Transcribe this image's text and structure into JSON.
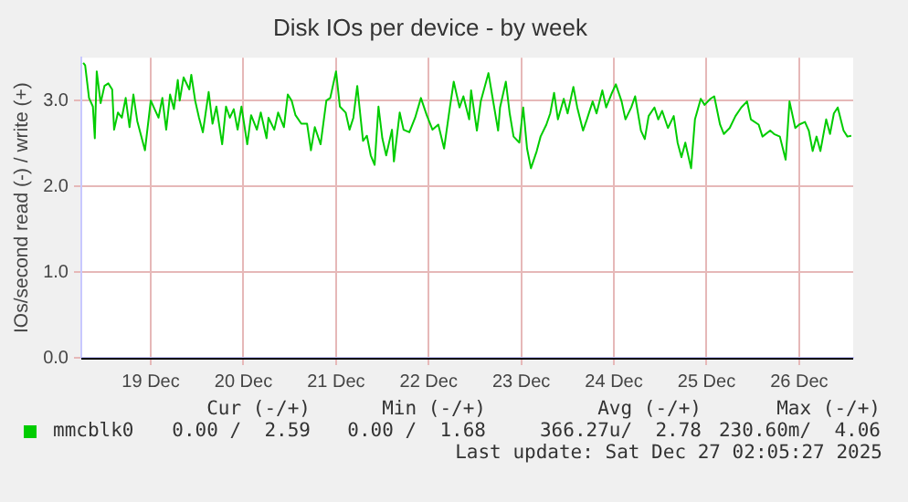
{
  "chart_data": {
    "type": "line",
    "title": "Disk IOs per device - by week",
    "ylabel": "IOs/second read (-) / write (+)",
    "xlim": [
      "2025-12-18T18:00",
      "2025-12-27T02:00"
    ],
    "xticks": [
      {
        "value": "2025-12-19T12:00",
        "label": "19 Dec"
      },
      {
        "value": "2025-12-20T12:00",
        "label": "20 Dec"
      },
      {
        "value": "2025-12-21T12:00",
        "label": "21 Dec"
      },
      {
        "value": "2025-12-22T12:00",
        "label": "22 Dec"
      },
      {
        "value": "2025-12-23T12:00",
        "label": "23 Dec"
      },
      {
        "value": "2025-12-24T12:00",
        "label": "24 Dec"
      },
      {
        "value": "2025-12-25T12:00",
        "label": "25 Dec"
      },
      {
        "value": "2025-12-26T12:00",
        "label": "26 Dec"
      }
    ],
    "ylim": [
      0,
      3.5
    ],
    "yticks": [
      {
        "value": 0,
        "label": "0.0"
      },
      {
        "value": 1,
        "label": "1.0"
      },
      {
        "value": 2,
        "label": "2.0"
      },
      {
        "value": 3,
        "label": "3.0"
      }
    ],
    "grid": true,
    "legend": "bottom left",
    "x": [
      "2025-12-18T18:30",
      "2025-12-18T19:00",
      "2025-12-18T20:00",
      "2025-12-18T21:00",
      "2025-12-18T21:30",
      "2025-12-18T22:00",
      "2025-12-18T23:00",
      "2025-12-19T00:00",
      "2025-12-19T01:00",
      "2025-12-19T02:00",
      "2025-12-19T02:30",
      "2025-12-19T03:30",
      "2025-12-19T04:30",
      "2025-12-19T05:30",
      "2025-12-19T06:30",
      "2025-12-19T07:30",
      "2025-12-19T08:30",
      "2025-12-19T09:30",
      "2025-12-19T10:30",
      "2025-12-19T12:00",
      "2025-12-19T13:00",
      "2025-12-19T14:00",
      "2025-12-19T15:00",
      "2025-12-19T16:00",
      "2025-12-19T17:00",
      "2025-12-19T18:00",
      "2025-12-19T19:00",
      "2025-12-19T19:30",
      "2025-12-19T20:30",
      "2025-12-19T22:00",
      "2025-12-19T22:30",
      "2025-12-19T23:30",
      "2025-12-20T00:30",
      "2025-12-20T01:30",
      "2025-12-20T03:00",
      "2025-12-20T04:00",
      "2025-12-20T05:00",
      "2025-12-20T06:30",
      "2025-12-20T07:30",
      "2025-12-20T08:30",
      "2025-12-20T09:30",
      "2025-12-20T10:30",
      "2025-12-20T11:30",
      "2025-12-20T13:00",
      "2025-12-20T14:00",
      "2025-12-20T15:30",
      "2025-12-20T16:30",
      "2025-12-20T18:00",
      "2025-12-20T18:30",
      "2025-12-20T20:00",
      "2025-12-20T21:00",
      "2025-12-20T22:30",
      "2025-12-20T23:30",
      "2025-12-21T00:30",
      "2025-12-21T01:30",
      "2025-12-21T03:00",
      "2025-12-21T04:30",
      "2025-12-21T05:30",
      "2025-12-21T06:30",
      "2025-12-21T08:00",
      "2025-12-21T09:30",
      "2025-12-21T10:30",
      "2025-12-21T12:00",
      "2025-12-21T13:00",
      "2025-12-21T14:30",
      "2025-12-21T15:30",
      "2025-12-21T16:30",
      "2025-12-21T17:30",
      "2025-12-21T19:00",
      "2025-12-21T20:00",
      "2025-12-21T21:00",
      "2025-12-21T22:00",
      "2025-12-21T23:00",
      "2025-12-22T00:00",
      "2025-12-22T01:00",
      "2025-12-22T02:30",
      "2025-12-22T03:00",
      "2025-12-22T04:30",
      "2025-12-22T05:30",
      "2025-12-22T07:00",
      "2025-12-22T08:30",
      "2025-12-22T10:00",
      "2025-12-22T11:30",
      "2025-12-22T13:00",
      "2025-12-22T14:30",
      "2025-12-22T16:00",
      "2025-12-22T17:30",
      "2025-12-22T18:30",
      "2025-12-22T20:00",
      "2025-12-22T21:00",
      "2025-12-22T22:30",
      "2025-12-22T23:00",
      "2025-12-23T00:30",
      "2025-12-23T01:30",
      "2025-12-23T03:30",
      "2025-12-23T04:30",
      "2025-12-23T06:00",
      "2025-12-23T06:30",
      "2025-12-23T08:00",
      "2025-12-23T09:00",
      "2025-12-23T10:00",
      "2025-12-23T11:30",
      "2025-12-23T12:30",
      "2025-12-23T13:30",
      "2025-12-23T14:30",
      "2025-12-23T16:00",
      "2025-12-23T17:00",
      "2025-12-23T18:30",
      "2025-12-23T19:30",
      "2025-12-23T20:30",
      "2025-12-23T21:30",
      "2025-12-23T23:00",
      "2025-12-24T00:00",
      "2025-12-24T01:30",
      "2025-12-24T02:30",
      "2025-12-24T04:00",
      "2025-12-24T05:00",
      "2025-12-24T06:30",
      "2025-12-24T07:30",
      "2025-12-24T09:00",
      "2025-12-24T10:00",
      "2025-12-24T11:30",
      "2025-12-24T12:30",
      "2025-12-24T14:00",
      "2025-12-24T15:00",
      "2025-12-24T16:30",
      "2025-12-24T17:30",
      "2025-12-24T19:00",
      "2025-12-24T20:00",
      "2025-12-24T21:00",
      "2025-12-24T22:30",
      "2025-12-24T23:30",
      "2025-12-25T00:30",
      "2025-12-25T02:00",
      "2025-12-25T03:30",
      "2025-12-25T04:30",
      "2025-12-25T05:30",
      "2025-12-25T06:30",
      "2025-12-25T08:00",
      "2025-12-25T09:00",
      "2025-12-25T10:30",
      "2025-12-25T11:30",
      "2025-12-25T13:00",
      "2025-12-25T14:00",
      "2025-12-25T15:30",
      "2025-12-25T16:30",
      "2025-12-25T18:00",
      "2025-12-25T19:30",
      "2025-12-25T21:00",
      "2025-12-25T22:30",
      "2025-12-25T23:30",
      "2025-12-26T01:30",
      "2025-12-26T02:30",
      "2025-12-26T04:30",
      "2025-12-26T05:30",
      "2025-12-26T07:00",
      "2025-12-26T08:30",
      "2025-12-26T09:30",
      "2025-12-26T11:00",
      "2025-12-26T12:00",
      "2025-12-26T13:30",
      "2025-12-26T14:30",
      "2025-12-26T15:30",
      "2025-12-26T16:30",
      "2025-12-26T17:30",
      "2025-12-26T19:00",
      "2025-12-26T20:00",
      "2025-12-26T21:00",
      "2025-12-26T22:00",
      "2025-12-26T23:30",
      "2025-12-27T00:30",
      "2025-12-27T01:30"
    ],
    "series": [
      {
        "name": "mmcblk0",
        "color": "#00cc00",
        "values": [
          3.44,
          3.41,
          3.03,
          2.93,
          2.56,
          3.34,
          2.97,
          3.17,
          3.2,
          3.13,
          2.66,
          2.86,
          2.8,
          3.03,
          2.69,
          3.07,
          2.76,
          2.59,
          2.42,
          3.0,
          2.9,
          2.8,
          3.03,
          2.66,
          3.07,
          2.9,
          3.24,
          3.0,
          3.27,
          3.13,
          3.3,
          3.0,
          2.8,
          2.63,
          3.1,
          2.73,
          2.93,
          2.49,
          2.93,
          2.8,
          2.9,
          2.66,
          2.93,
          2.49,
          2.83,
          2.66,
          2.86,
          2.56,
          2.8,
          2.66,
          2.86,
          2.69,
          3.07,
          3.0,
          2.83,
          2.73,
          2.73,
          2.42,
          2.69,
          2.49,
          3.0,
          3.03,
          3.34,
          2.93,
          2.86,
          2.66,
          2.8,
          3.17,
          2.53,
          2.59,
          2.36,
          2.25,
          2.93,
          2.56,
          2.36,
          2.66,
          2.29,
          2.86,
          2.66,
          2.63,
          2.8,
          3.03,
          2.83,
          2.66,
          2.72,
          2.44,
          2.92,
          3.22,
          2.92,
          3.05,
          2.78,
          3.12,
          2.65,
          2.99,
          3.32,
          3.05,
          2.65,
          2.92,
          3.22,
          2.85,
          2.58,
          2.51,
          2.92,
          2.44,
          2.21,
          2.41,
          2.58,
          2.72,
          2.85,
          3.09,
          2.78,
          3.02,
          2.85,
          3.16,
          2.92,
          2.65,
          2.78,
          2.99,
          2.85,
          3.12,
          2.92,
          3.09,
          3.19,
          2.99,
          2.78,
          2.92,
          3.05,
          2.65,
          2.55,
          2.82,
          2.92,
          2.78,
          2.88,
          2.68,
          2.82,
          2.51,
          2.34,
          2.51,
          2.21,
          2.78,
          3.02,
          2.95,
          3.02,
          3.05,
          2.72,
          2.61,
          2.68,
          2.82,
          2.92,
          2.99,
          2.78,
          2.72,
          2.58,
          2.65,
          2.61,
          2.58,
          2.31,
          2.99,
          2.68,
          2.72,
          2.75,
          2.65,
          2.41,
          2.58,
          2.41,
          2.78,
          2.61,
          2.85,
          2.92,
          2.65,
          2.58,
          2.59
        ]
      }
    ],
    "annotations": [
      "Cur (-/+)",
      "Min (-/+)",
      "Avg (-/+)",
      "Max (-/+)",
      "0.00 /  2.59",
      "0.00 /  1.68",
      "366.27u/  2.78",
      "230.60m/  4.06",
      "Last update: Sat Dec 27 02:05:27 2025"
    ]
  }
}
